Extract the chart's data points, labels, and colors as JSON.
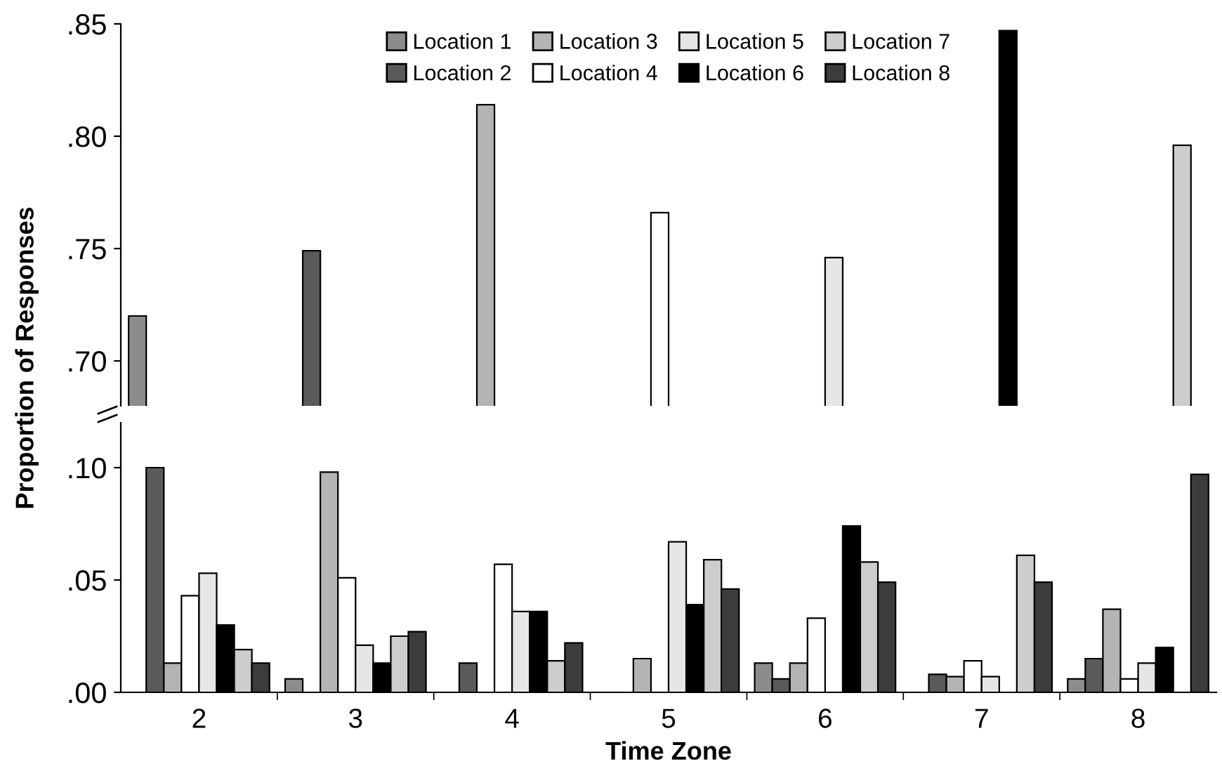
{
  "chart_data": [
    {
      "type": "bar",
      "categories": [
        "2",
        "3",
        "4",
        "5",
        "6",
        "7",
        "8"
      ],
      "series": [
        {
          "name": "Location 1",
          "color": "#8c8c8c",
          "values": [
            0.72,
            null,
            null,
            null,
            null,
            null,
            null
          ]
        },
        {
          "name": "Location 2",
          "color": "#5a5a5a",
          "values": [
            null,
            0.749,
            null,
            null,
            null,
            null,
            null
          ]
        },
        {
          "name": "Location 3",
          "color": "#b4b4b4",
          "values": [
            null,
            null,
            0.814,
            null,
            null,
            null,
            null
          ]
        },
        {
          "name": "Location 4",
          "color": "#ffffff",
          "values": [
            null,
            null,
            null,
            0.766,
            null,
            null,
            null
          ]
        },
        {
          "name": "Location 5",
          "color": "#e6e6e6",
          "values": [
            null,
            null,
            null,
            null,
            0.746,
            null,
            null
          ]
        },
        {
          "name": "Location 6",
          "color": "#000000",
          "values": [
            null,
            null,
            null,
            null,
            null,
            0.847,
            null
          ]
        },
        {
          "name": "Location 7",
          "color": "#cdcdcd",
          "values": [
            null,
            null,
            null,
            null,
            null,
            null,
            0.796
          ]
        },
        {
          "name": "Location 8",
          "color": "#3c3c3c",
          "values": [
            null,
            null,
            null,
            null,
            null,
            null,
            null
          ]
        }
      ],
      "ylim": [
        0.68,
        0.85
      ],
      "yticks": [
        {
          "value": 0.7,
          "label": ".70"
        },
        {
          "value": 0.75,
          "label": ".75"
        },
        {
          "value": 0.8,
          "label": ".80"
        },
        {
          "value": 0.85,
          "label": ".85"
        }
      ],
      "tick_labels": "y",
      "legend": "top",
      "grid": false
    },
    {
      "type": "bar",
      "xlabel": "Time Zone",
      "ylabel": "Proportion of Responses",
      "categories": [
        "2",
        "3",
        "4",
        "5",
        "6",
        "7",
        "8"
      ],
      "series": [
        {
          "color": "#8c8c8c",
          "values": [
            null,
            0.006,
            null,
            null,
            0.013,
            null,
            0.006
          ]
        },
        {
          "color": "#5a5a5a",
          "values": [
            0.1,
            null,
            0.013,
            null,
            0.006,
            0.008,
            0.015
          ]
        },
        {
          "color": "#b4b4b4",
          "values": [
            0.013,
            0.098,
            null,
            0.015,
            0.013,
            0.007,
            0.037
          ]
        },
        {
          "color": "#ffffff",
          "values": [
            0.043,
            0.051,
            0.057,
            null,
            0.033,
            0.014,
            0.006
          ]
        },
        {
          "color": "#e6e6e6",
          "values": [
            0.053,
            0.021,
            0.036,
            0.067,
            null,
            0.007,
            0.013
          ]
        },
        {
          "color": "#000000",
          "values": [
            0.03,
            0.013,
            0.036,
            0.039,
            0.074,
            null,
            0.02
          ]
        },
        {
          "color": "#cdcdcd",
          "values": [
            0.019,
            0.025,
            0.014,
            0.059,
            0.058,
            0.061,
            null
          ]
        },
        {
          "color": "#3c3c3c",
          "values": [
            0.013,
            0.027,
            0.022,
            0.046,
            0.049,
            0.049,
            0.097
          ]
        }
      ],
      "ylim": [
        0,
        0.12
      ],
      "yticks": [
        {
          "value": 0,
          "label": ".00"
        },
        {
          "value": 0.05,
          "label": ".05"
        },
        {
          "value": 0.1,
          "label": ".10"
        }
      ],
      "grid": false
    }
  ]
}
